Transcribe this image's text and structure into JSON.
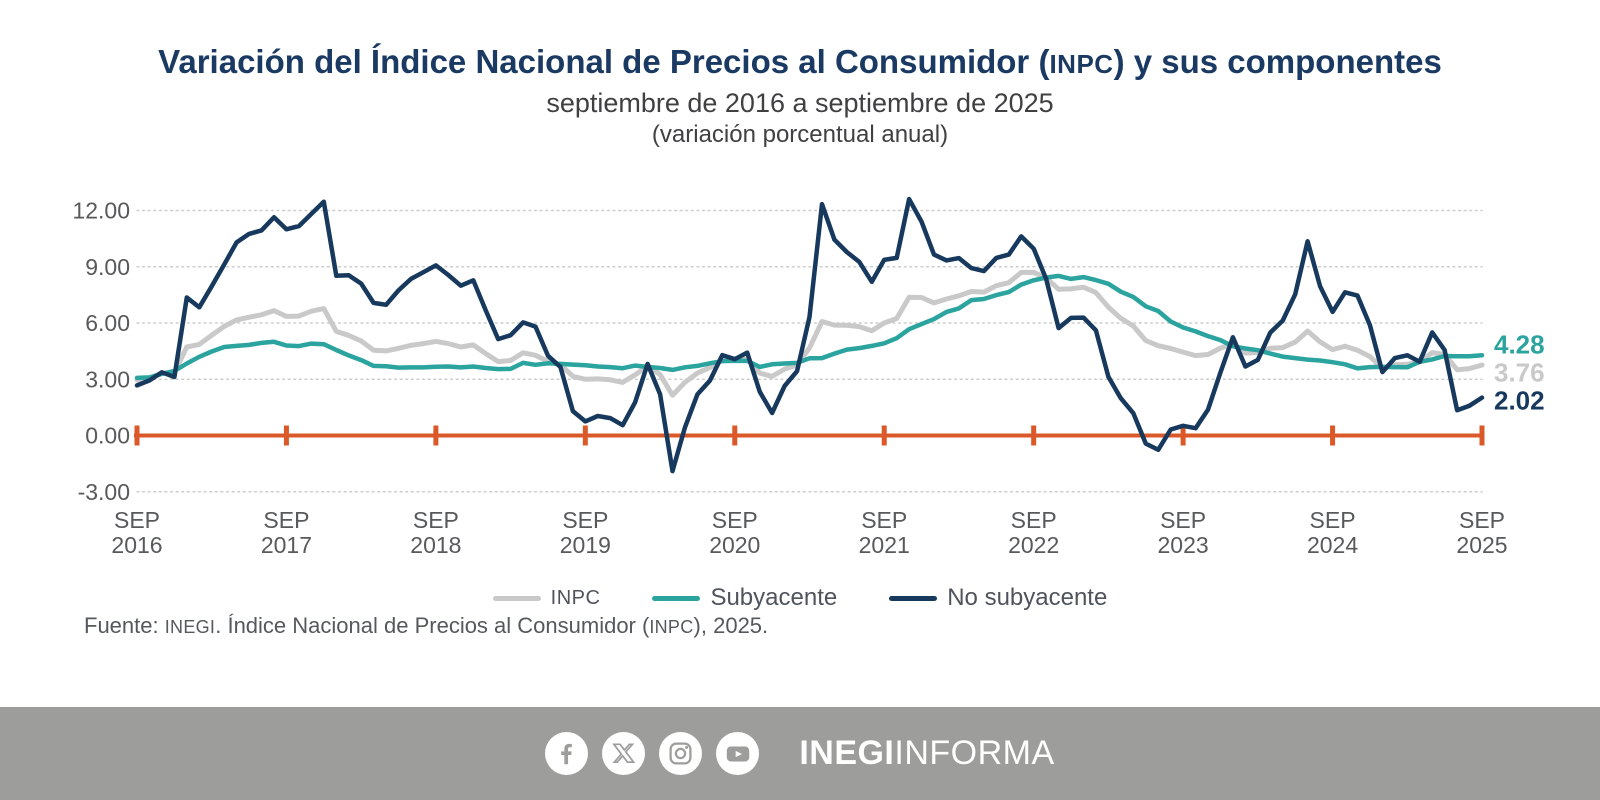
{
  "header": {
    "title_pre": "Variación del Índice Nacional de Precios al Consumidor (",
    "title_abbr": "INPC",
    "title_post": ") y sus componentes",
    "subtitle": "septiembre de 2016 a septiembre de 2025",
    "note": "(variación porcentual anual)",
    "title_color": "#1A3A63"
  },
  "chart_data": {
    "type": "line",
    "title": "Variación del Índice Nacional de Precios al Consumidor (INPC) y sus componentes",
    "subtitle": "septiembre de 2016 a septiembre de 2025",
    "unit": "variación porcentual anual",
    "x_frequency": "monthly",
    "x_start": "2016-09",
    "x_end": "2025-09",
    "x_tick_month": "SEP",
    "x_tick_years": [
      "2016",
      "2017",
      "2018",
      "2019",
      "2020",
      "2021",
      "2022",
      "2023",
      "2024",
      "2025"
    ],
    "ylim": [
      -3,
      12.7
    ],
    "yticks": [
      {
        "value": 12,
        "label": "12.00"
      },
      {
        "value": 9,
        "label": "9.00"
      },
      {
        "value": 6,
        "label": "6.00"
      },
      {
        "value": 3,
        "label": "3.00"
      },
      {
        "value": 0,
        "label": "0.00"
      },
      {
        "value": -3,
        "label": "-3.00"
      }
    ],
    "grid": "dotted-horizontal",
    "zero_axis_color": "#DB5928",
    "axis_text_color": "#58595B",
    "series": [
      {
        "name": "INPC",
        "color": "#C9C9C9",
        "end_label": "3.76",
        "values": [
          2.97,
          3.06,
          3.31,
          3.36,
          4.72,
          4.86,
          5.35,
          5.82,
          6.16,
          6.31,
          6.44,
          6.66,
          6.35,
          6.37,
          6.63,
          6.77,
          5.55,
          5.34,
          5.04,
          4.55,
          4.51,
          4.65,
          4.81,
          4.9,
          5.02,
          4.9,
          4.72,
          4.83,
          4.37,
          3.94,
          4.0,
          4.41,
          4.28,
          3.95,
          3.78,
          3.16,
          3.0,
          3.02,
          2.97,
          2.83,
          3.24,
          3.7,
          3.25,
          2.15,
          2.84,
          3.33,
          3.62,
          4.05,
          4.01,
          4.09,
          3.33,
          3.15,
          3.54,
          3.76,
          4.67,
          6.08,
          5.89,
          5.88,
          5.81,
          5.59,
          6.0,
          6.24,
          7.37,
          7.36,
          7.07,
          7.28,
          7.45,
          7.68,
          7.65,
          7.99,
          8.15,
          8.7,
          8.7,
          8.41,
          7.8,
          7.82,
          7.91,
          7.62,
          6.85,
          6.25,
          5.84,
          5.06,
          4.79,
          4.64,
          4.45,
          4.26,
          4.32,
          4.66,
          4.88,
          4.4,
          4.42,
          4.65,
          4.69,
          4.98,
          5.57,
          4.99,
          4.58,
          4.76,
          4.55,
          4.21,
          3.59,
          3.77,
          3.8,
          3.93,
          4.42,
          4.32,
          3.51,
          3.57,
          3.76
        ]
      },
      {
        "name": "Subyacente",
        "color": "#2BA49F",
        "end_label": "4.28",
        "values": [
          3.07,
          3.1,
          3.29,
          3.44,
          3.84,
          4.2,
          4.48,
          4.72,
          4.78,
          4.83,
          4.94,
          5.0,
          4.8,
          4.77,
          4.9,
          4.87,
          4.56,
          4.27,
          4.02,
          3.71,
          3.69,
          3.62,
          3.63,
          3.63,
          3.67,
          3.68,
          3.63,
          3.68,
          3.6,
          3.54,
          3.55,
          3.87,
          3.77,
          3.85,
          3.82,
          3.78,
          3.75,
          3.68,
          3.65,
          3.59,
          3.73,
          3.66,
          3.6,
          3.5,
          3.64,
          3.71,
          3.85,
          3.97,
          3.99,
          3.98,
          3.66,
          3.8,
          3.84,
          3.87,
          4.12,
          4.13,
          4.37,
          4.58,
          4.66,
          4.78,
          4.92,
          5.19,
          5.67,
          5.94,
          6.21,
          6.59,
          6.78,
          7.22,
          7.28,
          7.49,
          7.65,
          8.05,
          8.28,
          8.42,
          8.51,
          8.35,
          8.45,
          8.29,
          8.09,
          7.67,
          7.39,
          6.89,
          6.64,
          6.08,
          5.76,
          5.55,
          5.3,
          5.09,
          4.76,
          4.64,
          4.55,
          4.37,
          4.21,
          4.13,
          4.05,
          4.0,
          3.91,
          3.8,
          3.58,
          3.65,
          3.66,
          3.65,
          3.64,
          3.93,
          4.06,
          4.24,
          4.23,
          4.23,
          4.28
        ]
      },
      {
        "name": "No subyacente",
        "color": "#17395D",
        "end_label": "2.02",
        "values": [
          2.67,
          2.94,
          3.37,
          3.12,
          7.36,
          6.84,
          7.96,
          9.12,
          10.3,
          10.75,
          10.94,
          11.64,
          11.0,
          11.17,
          11.82,
          12.47,
          8.52,
          8.55,
          8.1,
          7.07,
          6.97,
          7.74,
          8.35,
          8.71,
          9.07,
          8.56,
          7.99,
          8.28,
          6.68,
          5.14,
          5.35,
          6.03,
          5.81,
          4.25,
          3.66,
          1.3,
          0.75,
          1.04,
          0.93,
          0.55,
          1.77,
          3.82,
          2.2,
          -1.9,
          0.44,
          2.19,
          2.93,
          4.29,
          4.07,
          4.42,
          2.34,
          1.2,
          2.64,
          3.43,
          6.32,
          12.34,
          10.45,
          9.78,
          9.26,
          8.2,
          9.37,
          9.47,
          12.61,
          11.4,
          9.65,
          9.34,
          9.46,
          8.93,
          8.77,
          9.47,
          9.65,
          10.62,
          9.96,
          8.36,
          5.73,
          6.27,
          6.29,
          5.61,
          3.13,
          1.99,
          1.19,
          -0.43,
          -0.76,
          0.32,
          0.52,
          0.39,
          1.38,
          3.37,
          5.24,
          3.68,
          4.03,
          5.49,
          6.13,
          7.53,
          10.36,
          7.96,
          6.59,
          7.64,
          7.46,
          5.89,
          3.38,
          4.13,
          4.28,
          3.93,
          5.5,
          4.56,
          1.35,
          1.59,
          2.02
        ]
      }
    ],
    "legend_position": "bottom-center"
  },
  "source": {
    "pre": "Fuente: ",
    "abbr1": "INEGI",
    "mid": ". Índice Nacional de Precios al Consumidor (",
    "abbr2": "INPC",
    "post": "), 2025."
  },
  "footer": {
    "background": "#9D9D9C",
    "icons": [
      "facebook",
      "x",
      "instagram",
      "youtube"
    ],
    "brand_bold": "INEGI",
    "brand_regular": "INFORMA"
  }
}
